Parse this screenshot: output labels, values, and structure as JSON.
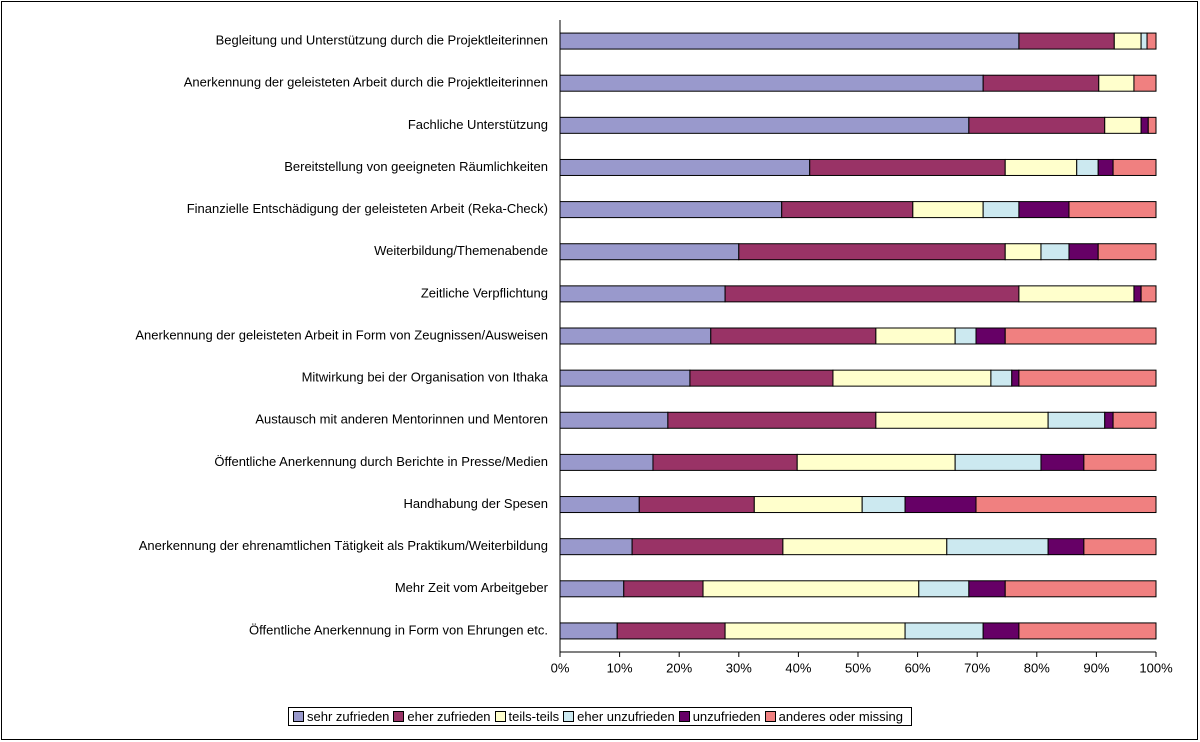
{
  "chart_data": {
    "type": "bar",
    "orientation": "horizontal",
    "stacked": true,
    "categories": [
      "Begleitung und Unterstützung durch die Projektleiterinnen",
      "Anerkennung der geleisteten Arbeit durch die Projektleiterinnen",
      "Fachliche Unterstützung",
      "Bereitstellung von geeigneten Räumlichkeiten",
      "Finanzielle Entschädigung der geleisteten Arbeit (Reka-Check)",
      "Weiterbildung/Themenabende",
      "Zeitliche Verpflichtung",
      "Anerkennung der geleisteten Arbeit in Form von Zeugnissen/Ausweisen",
      "Mitwirkung bei der Organisation von Ithaka",
      "Austausch mit anderen Mentorinnen und Mentoren",
      "Öffentliche Anerkennung durch Berichte in Presse/Medien",
      "Handhabung der Spesen",
      "Anerkennung der ehrenamtlichen Tätigkeit als Praktikum/Weiterbildung",
      "Mehr Zeit vom Arbeitgeber",
      "Öffentliche Anerkennung in Form von Ehrungen etc."
    ],
    "series": [
      {
        "name": "sehr zufrieden",
        "color": "#9999cc",
        "values": [
          77,
          71,
          68.6,
          41.9,
          37.2,
          30,
          27.7,
          25.3,
          21.8,
          18.1,
          15.6,
          13.3,
          12.1,
          10.7,
          9.6
        ]
      },
      {
        "name": "eher zufrieden",
        "color": "#993366",
        "values": [
          16,
          19.4,
          22.8,
          32.8,
          22,
          44.7,
          49.3,
          27.7,
          24,
          34.9,
          24.2,
          19.3,
          25.3,
          13.3,
          18.1
        ]
      },
      {
        "name": "teils-teils",
        "color": "#ffffcc",
        "values": [
          4.5,
          5.9,
          6.1,
          12,
          11.8,
          6,
          19.3,
          13.3,
          26.5,
          28.9,
          26.5,
          18.1,
          27.5,
          36.2,
          30.2
        ]
      },
      {
        "name": "eher unzufrieden",
        "color": "#cce9f0",
        "values": [
          1,
          0,
          0,
          3.6,
          6,
          4.7,
          0,
          3.5,
          3.5,
          9.5,
          14.4,
          7.2,
          17,
          8.4,
          13.1
        ]
      },
      {
        "name": "unzufrieden",
        "color": "#660066",
        "values": [
          0,
          0,
          1.2,
          2.5,
          8.4,
          4.9,
          1.2,
          4.9,
          1.2,
          1.4,
          7.2,
          11.9,
          6,
          6.1,
          6
        ]
      },
      {
        "name": "anderes oder missing",
        "color": "#f08080",
        "values": [
          1.5,
          3.7,
          1.3,
          7.2,
          14.6,
          9.7,
          2.5,
          25.3,
          23,
          7.2,
          12.1,
          30.2,
          12.1,
          25.3,
          23
        ]
      }
    ],
    "xlim": [
      0,
      100
    ],
    "xticks": [
      {
        "value": 0,
        "label": "0%"
      },
      {
        "value": 10,
        "label": "10%"
      },
      {
        "value": 20,
        "label": "20%"
      },
      {
        "value": 30,
        "label": "30%"
      },
      {
        "value": 40,
        "label": "40%"
      },
      {
        "value": 50,
        "label": "50%"
      },
      {
        "value": 60,
        "label": "60%"
      },
      {
        "value": 70,
        "label": "70%"
      },
      {
        "value": 80,
        "label": "80%"
      },
      {
        "value": 90,
        "label": "90%"
      },
      {
        "value": 100,
        "label": "100%"
      }
    ],
    "legend": "bottom"
  }
}
